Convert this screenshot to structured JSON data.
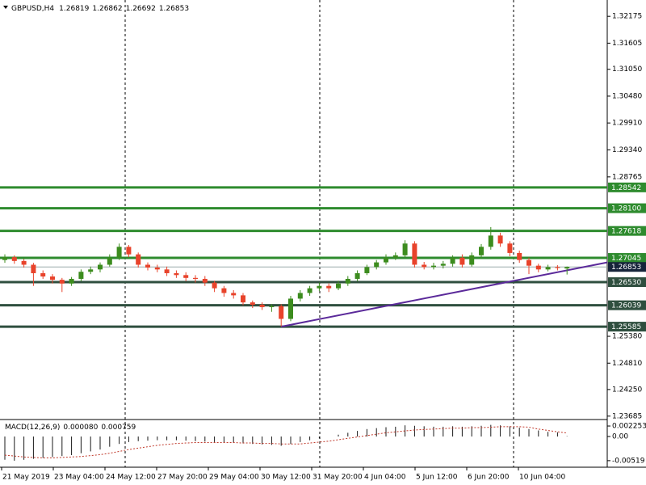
{
  "chart_data": {
    "type": "candlestick",
    "title": "GBPUSD,H4",
    "ohlc_header": [
      1.26819,
      1.26862,
      1.26692,
      1.26853
    ],
    "ylim": [
      1.2363,
      1.3247
    ],
    "yticks": [
      1.32175,
      1.31605,
      {
        "value": 1.3105,
        "label": "1.31050"
      },
      {
        "value": 1.3048,
        "label": "1.30480"
      },
      {
        "value": 1.2991,
        "label": "1.29910"
      },
      {
        "value": 1.2934,
        "label": "1.29340"
      },
      1.28765,
      {
        "value": 1.2538,
        "label": "1.25380"
      },
      {
        "value": 1.2481,
        "label": "1.24810"
      },
      {
        "value": 1.2425,
        "label": "1.24250"
      },
      1.23685
    ],
    "up_color": "#3c8c1e",
    "down_color": "#e8432b",
    "candles": [
      [
        1.27,
        1.2712,
        1.2694,
        1.2706
      ],
      [
        1.2706,
        1.271,
        1.2692,
        1.2698
      ],
      [
        1.2698,
        1.2702,
        1.2684,
        1.269
      ],
      [
        1.269,
        1.2694,
        1.2645,
        1.2672
      ],
      [
        1.2672,
        1.2678,
        1.266,
        1.2665
      ],
      [
        1.2665,
        1.267,
        1.265,
        1.2658
      ],
      [
        1.2658,
        1.2662,
        1.2632,
        1.265
      ],
      [
        1.265,
        1.2664,
        1.2645,
        1.266
      ],
      [
        1.266,
        1.268,
        1.2655,
        1.2675
      ],
      [
        1.2675,
        1.2686,
        1.267,
        1.268
      ],
      [
        1.268,
        1.2695,
        1.2674,
        1.269
      ],
      [
        1.269,
        1.2712,
        1.2686,
        1.2705
      ],
      [
        1.2705,
        1.2735,
        1.27,
        1.2728
      ],
      [
        1.2728,
        1.2732,
        1.2706,
        1.2712
      ],
      [
        1.2712,
        1.2716,
        1.2684,
        1.269
      ],
      [
        1.269,
        1.2695,
        1.2678,
        1.2684
      ],
      [
        1.2684,
        1.269,
        1.2674,
        1.268
      ],
      [
        1.268,
        1.2686,
        1.2666,
        1.2672
      ],
      [
        1.2672,
        1.2678,
        1.2662,
        1.2668
      ],
      [
        1.2668,
        1.2674,
        1.2655,
        1.2662
      ],
      [
        1.2662,
        1.2668,
        1.2652,
        1.266
      ],
      [
        1.266,
        1.2666,
        1.2645,
        1.2652
      ],
      [
        1.2652,
        1.2656,
        1.2632,
        1.264
      ],
      [
        1.264,
        1.2645,
        1.2622,
        1.263
      ],
      [
        1.263,
        1.2636,
        1.2618,
        1.2625
      ],
      [
        1.2625,
        1.263,
        1.2604,
        1.261
      ],
      [
        1.261,
        1.2614,
        1.2598,
        1.2605
      ],
      [
        1.2605,
        1.261,
        1.2594,
        1.26
      ],
      [
        1.26,
        1.2606,
        1.259,
        1.2602
      ],
      [
        1.2602,
        1.2606,
        1.2559,
        1.2575
      ],
      [
        1.2575,
        1.2624,
        1.257,
        1.2618
      ],
      [
        1.2618,
        1.2636,
        1.2612,
        1.263
      ],
      [
        1.263,
        1.2645,
        1.2624,
        1.264
      ],
      [
        1.264,
        1.2652,
        1.2634,
        1.2645
      ],
      [
        1.2645,
        1.265,
        1.2632,
        1.264
      ],
      [
        1.264,
        1.2656,
        1.2636,
        1.265
      ],
      [
        1.265,
        1.2666,
        1.2645,
        1.266
      ],
      [
        1.266,
        1.2678,
        1.2655,
        1.2672
      ],
      [
        1.2672,
        1.269,
        1.2668,
        1.2685
      ],
      [
        1.2685,
        1.27,
        1.268,
        1.2695
      ],
      [
        1.2695,
        1.2712,
        1.269,
        1.2705
      ],
      [
        1.2705,
        1.2716,
        1.27,
        1.271
      ],
      [
        1.271,
        1.2742,
        1.2705,
        1.2735
      ],
      [
        1.2735,
        1.274,
        1.2684,
        1.269
      ],
      [
        1.269,
        1.2696,
        1.268,
        1.2685
      ],
      [
        1.2685,
        1.2694,
        1.268,
        1.2688
      ],
      [
        1.2688,
        1.2698,
        1.2682,
        1.2692
      ],
      [
        1.2692,
        1.271,
        1.2686,
        1.2705
      ],
      [
        1.2705,
        1.2712,
        1.2684,
        1.269
      ],
      [
        1.269,
        1.2716,
        1.2686,
        1.271
      ],
      [
        1.271,
        1.2734,
        1.2704,
        1.2728
      ],
      [
        1.2728,
        1.277,
        1.2722,
        1.2752
      ],
      [
        1.2752,
        1.2758,
        1.2728,
        1.2735
      ],
      [
        1.2735,
        1.274,
        1.2708,
        1.2715
      ],
      [
        1.2715,
        1.272,
        1.2694,
        1.27
      ],
      [
        1.27,
        1.2705,
        1.267,
        1.2688
      ],
      [
        1.2688,
        1.2692,
        1.2674,
        1.268
      ],
      [
        1.268,
        1.269,
        1.2676,
        1.2685
      ],
      [
        1.2685,
        1.2689,
        1.2678,
        1.2683
      ],
      [
        1.26819,
        1.26862,
        1.26692,
        1.26853
      ]
    ],
    "levels": [
      {
        "value": 1.28542,
        "color": "#2e8b2e"
      },
      {
        "value": 1.281,
        "label": "1.28100",
        "color": "#2e8b2e"
      },
      {
        "value": 1.27618,
        "color": "#2e8b2e"
      },
      {
        "value": 1.27045,
        "color": "#2e8b2e"
      },
      {
        "value": 1.2653,
        "label": "1.26530",
        "color": "#2f4f3f"
      },
      {
        "value": 1.26039,
        "color": "#2f4f3f"
      },
      {
        "value": 1.25585,
        "color": "#2f4f3f"
      }
    ],
    "current_price": 1.26853,
    "trendline": {
      "values": [
        1.25585,
        1.2695
      ],
      "color": "#5b2a9a"
    },
    "x_labels": [
      "21 May 2019",
      "23 May 04:00",
      "24 May 12:00",
      "27 May 20:00",
      "29 May 04:00",
      "30 May 12:00",
      "31 May 20:00",
      "4 Jun 04:00",
      "5 Jun 12:00",
      "6 Jun 20:00",
      "10 Jun 04:00"
    ],
    "macd": {
      "label": "MACD(12,26,9)",
      "readout": [
        {
          "value": 8e-05,
          "label": "0.000080"
        },
        0.000759
      ],
      "ylim": [
        -0.0066,
        0.0033
      ],
      "yticks": [
        0.002253,
        {
          "value": 0,
          "label": "0.00"
        },
        -0.00519
      ],
      "values": [
        -0.005,
        -0.0052,
        -0.005,
        -0.0048,
        -0.0046,
        -0.0044,
        -0.0042,
        -0.004,
        -0.0036,
        -0.0032,
        -0.0028,
        -0.0022,
        -0.0016,
        -0.0012,
        -0.001,
        -0.0009,
        -0.0008,
        -0.0008,
        -0.0008,
        -0.0009,
        -0.001,
        -0.0011,
        -0.0012,
        -0.0013,
        -0.0014,
        -0.0015,
        -0.0016,
        -0.0017,
        -0.0018,
        -0.002,
        -0.0016,
        -0.0012,
        -0.0008,
        -0.0004,
        0.0,
        0.0004,
        0.0008,
        0.0012,
        0.0016,
        0.0018,
        0.002,
        0.0021,
        0.0024,
        0.0023,
        0.0022,
        0.0021,
        0.0021,
        0.0022,
        0.0021,
        0.0022,
        0.0023,
        0.0025,
        0.0024,
        0.0022,
        0.0019,
        0.0016,
        0.0013,
        0.001,
        0.0009,
        8e-05
      ],
      "signal": [
        -0.004,
        -0.0042,
        -0.0044,
        -0.0045,
        -0.0046,
        -0.0046,
        -0.0045,
        -0.0044,
        -0.0043,
        -0.0041,
        -0.0039,
        -0.0036,
        -0.0032,
        -0.0028,
        -0.0025,
        -0.0022,
        -0.0019,
        -0.0017,
        -0.0015,
        -0.0014,
        -0.0013,
        -0.0013,
        -0.0013,
        -0.0013,
        -0.0013,
        -0.0014,
        -0.0014,
        -0.0015,
        -0.0015,
        -0.0016,
        -0.0016,
        -0.0016,
        -0.0014,
        -0.0012,
        -0.001,
        -0.0007,
        -0.0004,
        -0.0001,
        0.0002,
        0.0005,
        0.0008,
        0.001,
        0.0012,
        0.0014,
        0.0015,
        0.0016,
        0.0017,
        0.0018,
        0.0018,
        0.0019,
        0.0019,
        0.002,
        0.0021,
        0.0021,
        0.0021,
        0.002,
        0.0016,
        0.0013,
        0.001,
        0.000759
      ],
      "bar_color": "#1a1a1a",
      "signal_color": "#c0392b"
    }
  }
}
